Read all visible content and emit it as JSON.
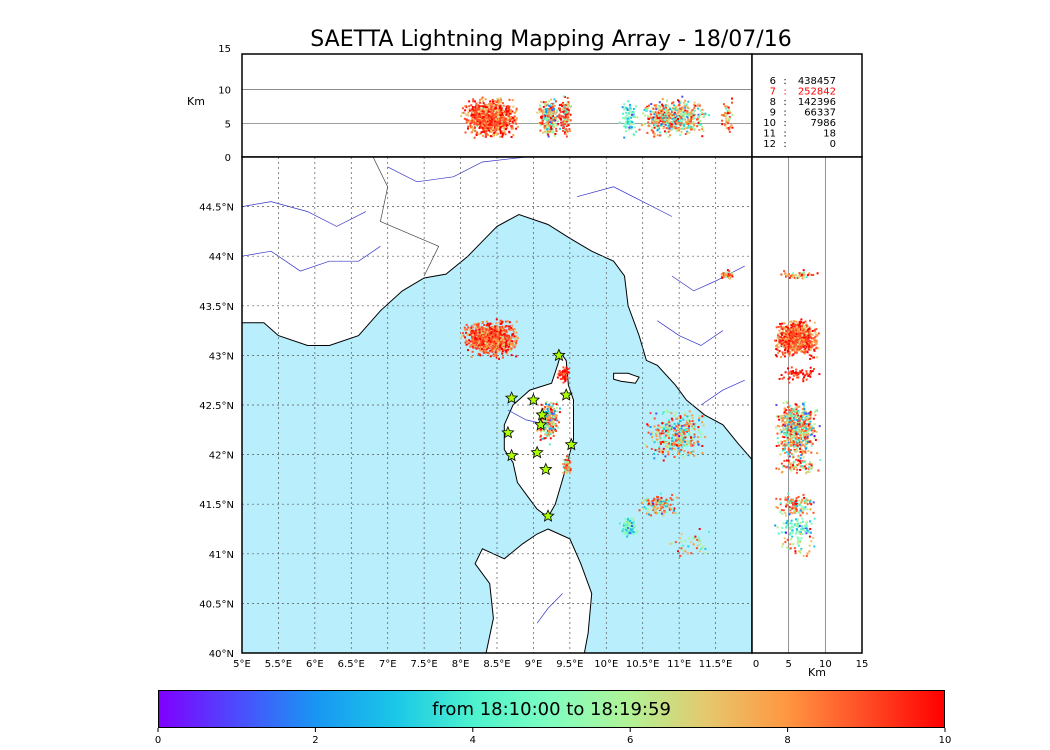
{
  "title": "SAETTA Lightning Mapping Array - 18/07/16",
  "chart_data": {
    "type": "scatter",
    "map": {
      "lon_range": [
        5,
        12
      ],
      "lat_range": [
        40,
        45
      ],
      "lon_ticks": [
        "5°E",
        "5.5°E",
        "6°E",
        "6.5°E",
        "7°E",
        "7.5°E",
        "8°E",
        "8.5°E",
        "9°E",
        "9.5°E",
        "10°E",
        "10.5°E",
        "11°E",
        "11.5°E"
      ],
      "lat_ticks": [
        "40°N",
        "40.5°N",
        "41°N",
        "41.5°N",
        "42°N",
        "42.5°N",
        "43°N",
        "43.5°N",
        "44°N",
        "44.5°N"
      ],
      "grid": "dotted",
      "sea_color": "#b9eefd",
      "land_color": "#ffffff"
    },
    "altitude_panel": {
      "ylabel": "Km",
      "y_ticks": [
        "0",
        "5",
        "10",
        "15"
      ],
      "ylim": [
        0,
        15
      ]
    },
    "side_panel": {
      "xlabel": "Km",
      "x_ticks": [
        "0",
        "5",
        "10",
        "15"
      ],
      "xlim": [
        0,
        15
      ]
    },
    "station_counts": [
      {
        "stations": "6",
        "count": "438457",
        "highlight": false
      },
      {
        "stations": "7",
        "count": "252842",
        "highlight": true
      },
      {
        "stations": "8",
        "count": "142396",
        "highlight": false
      },
      {
        "stations": "9",
        "count": "66337",
        "highlight": false
      },
      {
        "stations": "10",
        "count": "7986",
        "highlight": false
      },
      {
        "stations": "11",
        "count": "18",
        "highlight": false
      },
      {
        "stations": "12",
        "count": "0",
        "highlight": false
      }
    ],
    "colorbar": {
      "label": "from 18:10:00 to 18:19:59",
      "ticks": [
        "0",
        "2",
        "4",
        "6",
        "8",
        "10"
      ],
      "range": [
        0,
        10
      ],
      "colors": [
        "#7f00ff",
        "#4c4cfd",
        "#1996f3",
        "#1ac7e7",
        "#4cf2ce",
        "#80fec0",
        "#b2f296",
        "#e6c76d",
        "#ff9641",
        "#ff4c26",
        "#ff0000"
      ]
    },
    "stations": [
      {
        "lon": 8.7,
        "lat": 42.57
      },
      {
        "lon": 9.0,
        "lat": 42.55
      },
      {
        "lon": 9.12,
        "lat": 42.4
      },
      {
        "lon": 9.1,
        "lat": 42.3
      },
      {
        "lon": 8.65,
        "lat": 42.22
      },
      {
        "lon": 9.05,
        "lat": 42.02
      },
      {
        "lon": 8.7,
        "lat": 41.99
      },
      {
        "lon": 9.17,
        "lat": 41.85
      },
      {
        "lon": 9.35,
        "lat": 43.0
      },
      {
        "lon": 9.45,
        "lat": 42.6
      },
      {
        "lon": 9.52,
        "lat": 42.1
      },
      {
        "lon": 9.2,
        "lat": 41.38
      }
    ],
    "clusters": [
      {
        "lon": 8.4,
        "lat": 43.18,
        "dlon": 0.45,
        "dlat": 0.22,
        "n": 900,
        "t": [
          6,
          10
        ]
      },
      {
        "lon": 9.4,
        "lat": 42.82,
        "dlon": 0.1,
        "dlat": 0.1,
        "n": 60,
        "t": [
          8,
          10
        ]
      },
      {
        "lon": 9.2,
        "lat": 42.35,
        "dlon": 0.18,
        "dlat": 0.25,
        "n": 260,
        "t": [
          0,
          10
        ]
      },
      {
        "lon": 9.45,
        "lat": 41.9,
        "dlon": 0.08,
        "dlat": 0.12,
        "n": 80,
        "t": [
          2,
          10
        ]
      },
      {
        "lon": 10.95,
        "lat": 42.2,
        "dlon": 0.5,
        "dlat": 0.3,
        "n": 380,
        "t": [
          0,
          10
        ]
      },
      {
        "lon": 10.7,
        "lat": 41.5,
        "dlon": 0.35,
        "dlat": 0.15,
        "n": 120,
        "t": [
          0,
          10
        ]
      },
      {
        "lon": 10.3,
        "lat": 41.28,
        "dlon": 0.15,
        "dlat": 0.12,
        "n": 80,
        "t": [
          0,
          6
        ]
      },
      {
        "lon": 11.65,
        "lat": 43.82,
        "dlon": 0.1,
        "dlat": 0.06,
        "n": 50,
        "t": [
          4,
          10
        ]
      },
      {
        "lon": 11.2,
        "lat": 41.1,
        "dlon": 0.4,
        "dlat": 0.2,
        "n": 40,
        "t": [
          0,
          10
        ]
      }
    ]
  }
}
